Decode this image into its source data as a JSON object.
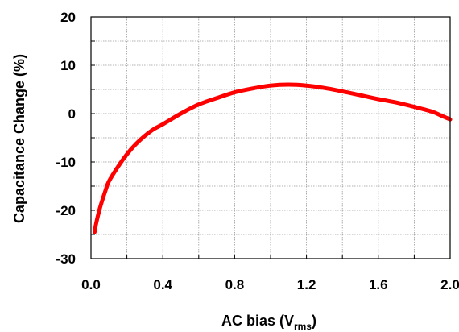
{
  "chart_data": {
    "type": "line",
    "xlabel": "AC bias (V",
    "xlabel_sub": "rms",
    "xlabel_close": ")",
    "ylabel": "Capacitance Change (%)",
    "xlim": [
      0.0,
      2.0
    ],
    "ylim": [
      -30,
      20
    ],
    "xticks": [
      "0.0",
      "0.4",
      "0.8",
      "1.2",
      "1.6",
      "2.0"
    ],
    "yticks": [
      "20",
      "10",
      "0",
      "-10",
      "-20",
      "-30"
    ],
    "x_minor_step": 0.2,
    "y_minor_step": 5,
    "grid": true,
    "series": [
      {
        "color": "#ff0000",
        "x": [
          0.02,
          0.03,
          0.05,
          0.08,
          0.1,
          0.15,
          0.2,
          0.25,
          0.3,
          0.35,
          0.4,
          0.5,
          0.6,
          0.7,
          0.8,
          0.9,
          1.0,
          1.1,
          1.2,
          1.3,
          1.4,
          1.5,
          1.6,
          1.7,
          1.8,
          1.9,
          1.95,
          2.0
        ],
        "y": [
          -24.5,
          -22.5,
          -19.5,
          -16.0,
          -14.0,
          -11.0,
          -8.4,
          -6.3,
          -4.6,
          -3.2,
          -2.2,
          0.0,
          1.9,
          3.2,
          4.4,
          5.2,
          5.8,
          6.0,
          5.8,
          5.3,
          4.6,
          3.8,
          3.0,
          2.3,
          1.4,
          0.4,
          -0.4,
          -1.2
        ]
      }
    ]
  }
}
